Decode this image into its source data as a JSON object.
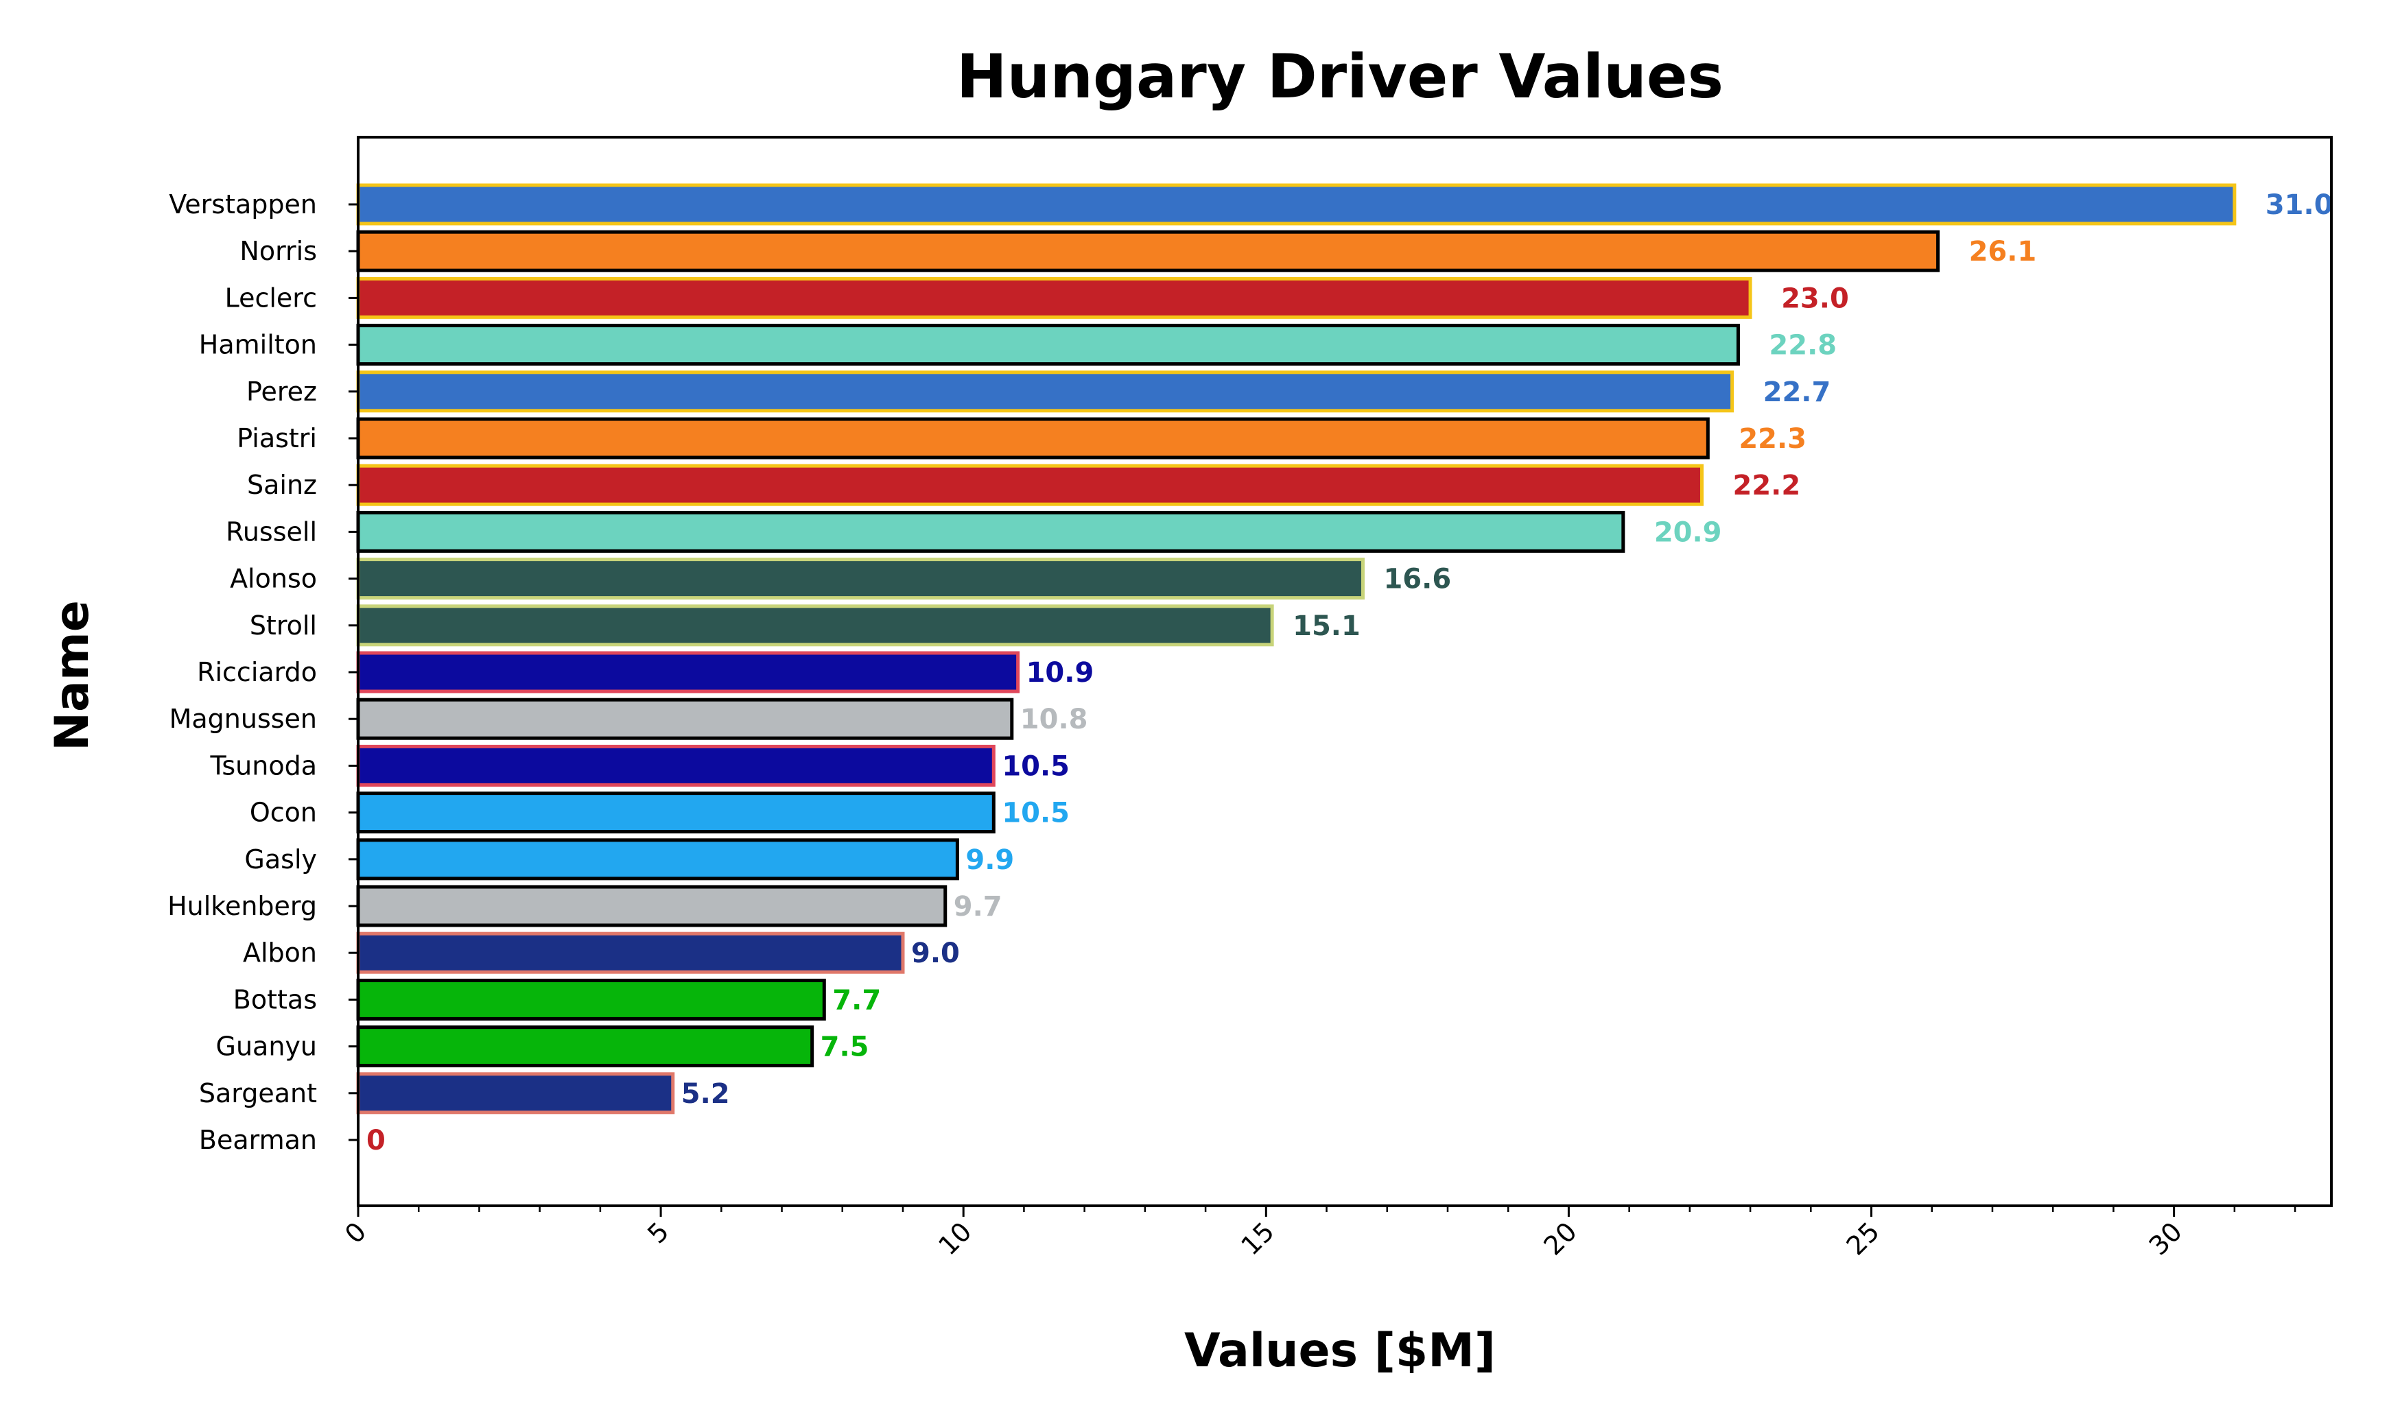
{
  "chart_data": {
    "type": "bar",
    "orientation": "horizontal",
    "title": "Hungary Driver Values",
    "xlabel": "Values [$M]",
    "ylabel": "Name",
    "xlim": [
      0,
      32.6
    ],
    "xticks": [
      0,
      5,
      10,
      15,
      20,
      25,
      30
    ],
    "xtick_labels": [
      "0",
      "5",
      "10",
      "15",
      "20",
      "25",
      "30"
    ],
    "minor_tick_step": 1,
    "grid": false,
    "legend": "none",
    "bars": [
      {
        "name": "Verstappen",
        "value": 31.0,
        "label": "31.0",
        "fill": "#3671C6",
        "edge": "#F5C518",
        "label_color": "#3671C6"
      },
      {
        "name": "Norris",
        "value": 26.1,
        "label": "26.1",
        "fill": "#F58020",
        "edge": "#000000",
        "label_color": "#F58020"
      },
      {
        "name": "Leclerc",
        "value": 23.0,
        "label": "23.0",
        "fill": "#C42127",
        "edge": "#F5C518",
        "label_color": "#C42127"
      },
      {
        "name": "Hamilton",
        "value": 22.8,
        "label": "22.8",
        "fill": "#6CD3BF",
        "edge": "#000000",
        "label_color": "#6CD3BF"
      },
      {
        "name": "Perez",
        "value": 22.7,
        "label": "22.7",
        "fill": "#3671C6",
        "edge": "#F5C518",
        "label_color": "#3671C6"
      },
      {
        "name": "Piastri",
        "value": 22.3,
        "label": "22.3",
        "fill": "#F58020",
        "edge": "#000000",
        "label_color": "#F58020"
      },
      {
        "name": "Sainz",
        "value": 22.2,
        "label": "22.2",
        "fill": "#C42127",
        "edge": "#F5C518",
        "label_color": "#C42127"
      },
      {
        "name": "Russell",
        "value": 20.9,
        "label": "20.9",
        "fill": "#6CD3BF",
        "edge": "#000000",
        "label_color": "#6CD3BF"
      },
      {
        "name": "Alonso",
        "value": 16.6,
        "label": "16.6",
        "fill": "#2D5651",
        "edge": "#C8D47A",
        "label_color": "#2D5651"
      },
      {
        "name": "Stroll",
        "value": 15.1,
        "label": "15.1",
        "fill": "#2D5651",
        "edge": "#C8D47A",
        "label_color": "#2D5651"
      },
      {
        "name": "Ricciardo",
        "value": 10.9,
        "label": "10.9",
        "fill": "#0C0A9E",
        "edge": "#E0475B",
        "label_color": "#0C0A9E"
      },
      {
        "name": "Magnussen",
        "value": 10.8,
        "label": "10.8",
        "fill": "#B6BABD",
        "edge": "#000000",
        "label_color": "#B6BABD"
      },
      {
        "name": "Tsunoda",
        "value": 10.5,
        "label": "10.5",
        "fill": "#0C0A9E",
        "edge": "#E0475B",
        "label_color": "#0C0A9E"
      },
      {
        "name": "Ocon",
        "value": 10.5,
        "label": "10.5",
        "fill": "#22A7F0",
        "edge": "#000000",
        "label_color": "#22A7F0"
      },
      {
        "name": "Gasly",
        "value": 9.9,
        "label": "9.9",
        "fill": "#22A7F0",
        "edge": "#000000",
        "label_color": "#22A7F0"
      },
      {
        "name": "Hulkenberg",
        "value": 9.7,
        "label": "9.7",
        "fill": "#B6BABD",
        "edge": "#000000",
        "label_color": "#B6BABD"
      },
      {
        "name": "Albon",
        "value": 9.0,
        "label": "9.0",
        "fill": "#1B3086",
        "edge": "#E0786A",
        "label_color": "#1B3086"
      },
      {
        "name": "Bottas",
        "value": 7.7,
        "label": "7.7",
        "fill": "#06B50A",
        "edge": "#000000",
        "label_color": "#06B50A"
      },
      {
        "name": "Guanyu",
        "value": 7.5,
        "label": "7.5",
        "fill": "#06B50A",
        "edge": "#000000",
        "label_color": "#06B50A"
      },
      {
        "name": "Sargeant",
        "value": 5.2,
        "label": "5.2",
        "fill": "#1B3086",
        "edge": "#E0786A",
        "label_color": "#1B3086"
      },
      {
        "name": "Bearman",
        "value": 0,
        "label": "0",
        "fill": "#C42127",
        "edge": "#C42127",
        "label_color": "#C42127"
      }
    ]
  }
}
